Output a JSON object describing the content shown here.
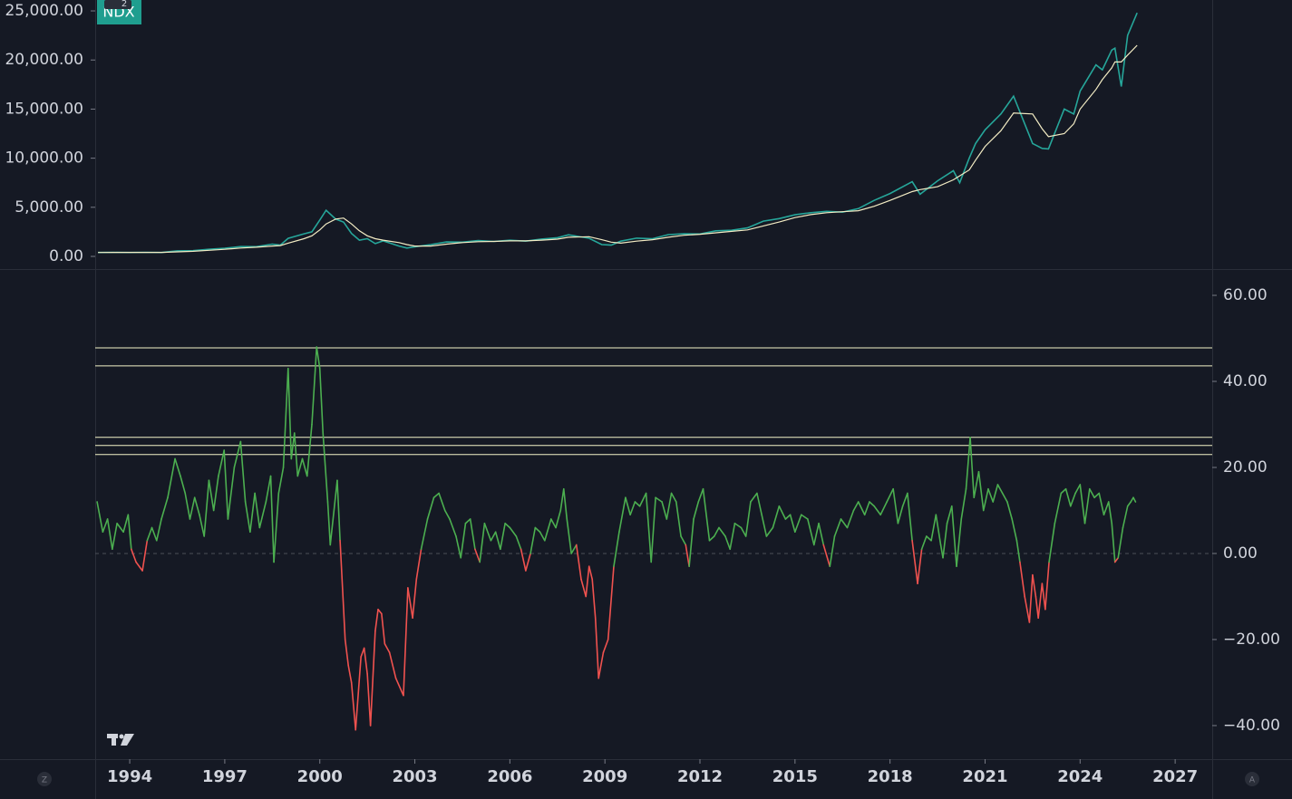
{
  "chart_data": [
    {
      "type": "line",
      "badge": "2",
      "xlim": [
        1992.91,
        2028.17
      ],
      "ylim": [
        -1290,
        26110
      ],
      "yticks": [
        {
          "value": 0,
          "label": "0.00"
        },
        {
          "value": 5000,
          "label": "5,000.00"
        },
        {
          "value": 10000,
          "label": "10,000.00"
        },
        {
          "value": 15000,
          "label": "15,000.00"
        },
        {
          "value": 20000,
          "label": "20,000.00"
        },
        {
          "value": 25000,
          "label": "25,000.00"
        }
      ],
      "x": [
        1993.0,
        1993.5,
        1994.0,
        1994.5,
        1995.0,
        1995.5,
        1996.0,
        1996.5,
        1997.0,
        1997.5,
        1998.0,
        1998.5,
        1998.75,
        1999.0,
        1999.5,
        1999.75,
        2000.0,
        2000.2,
        2000.5,
        2000.75,
        2001.0,
        2001.25,
        2001.5,
        2001.75,
        2002.0,
        2002.5,
        2002.75,
        2003.0,
        2003.5,
        2004.0,
        2004.5,
        2005.0,
        2005.5,
        2006.0,
        2006.5,
        2007.0,
        2007.5,
        2007.85,
        2008.5,
        2008.9,
        2009.2,
        2009.5,
        2010.0,
        2010.5,
        2011.0,
        2011.5,
        2012.0,
        2012.5,
        2013.0,
        2013.5,
        2014.0,
        2014.5,
        2015.0,
        2015.5,
        2016.0,
        2016.5,
        2017.0,
        2017.5,
        2018.0,
        2018.7,
        2018.95,
        2019.5,
        2020.0,
        2020.2,
        2020.5,
        2020.7,
        2021.0,
        2021.5,
        2021.9,
        2022.5,
        2022.8,
        2023.0,
        2023.5,
        2023.8,
        2024.0,
        2024.5,
        2024.7,
        2025.0,
        2025.1,
        2025.3,
        2025.5,
        2025.8
      ],
      "series": [
        {
          "name": "NDX",
          "color": "#26a69a",
          "values": [
            400,
            410,
            400,
            420,
            400,
            560,
            580,
            720,
            830,
            1000,
            990,
            1250,
            1150,
            1840,
            2300,
            2500,
            3700,
            4700,
            3800,
            3500,
            2340,
            1650,
            1800,
            1300,
            1580,
            1050,
            850,
            980,
            1200,
            1470,
            1450,
            1620,
            1520,
            1645,
            1550,
            1760,
            1900,
            2200,
            1850,
            1200,
            1150,
            1550,
            1860,
            1800,
            2220,
            2300,
            2280,
            2600,
            2660,
            2900,
            3590,
            3850,
            4240,
            4450,
            4590,
            4500,
            4860,
            5700,
            6400,
            7600,
            6330,
            7700,
            8730,
            7500,
            10000,
            11500,
            12890,
            14500,
            16320,
            11500,
            11000,
            10940,
            15000,
            14500,
            16830,
            19500,
            19000,
            21010,
            21200,
            17300,
            22500,
            24800
          ]
        },
        {
          "color": "#f3ecc4",
          "values": [
            400,
            405,
            405,
            410,
            410,
            460,
            520,
            620,
            720,
            850,
            930,
            1050,
            1100,
            1350,
            1800,
            2100,
            2700,
            3300,
            3800,
            3900,
            3300,
            2600,
            2100,
            1800,
            1650,
            1400,
            1200,
            1050,
            1050,
            1250,
            1400,
            1500,
            1520,
            1580,
            1580,
            1650,
            1750,
            1950,
            2000,
            1700,
            1450,
            1350,
            1550,
            1700,
            1950,
            2150,
            2250,
            2400,
            2550,
            2700,
            3100,
            3500,
            3950,
            4250,
            4450,
            4550,
            4650,
            5100,
            5700,
            6600,
            6800,
            7100,
            7800,
            8200,
            8800,
            9800,
            11200,
            12800,
            14600,
            14500,
            13000,
            12200,
            12500,
            13500,
            15000,
            17000,
            18000,
            19200,
            19800,
            19800,
            20500,
            21500
          ]
        }
      ]
    },
    {
      "type": "oscillator",
      "xlim": [
        1992.91,
        2028.17
      ],
      "ylim": [
        -47.8,
        65.9
      ],
      "yticks": [
        {
          "value": -40,
          "label": "−40.00"
        },
        {
          "value": -20,
          "label": "−20.00"
        },
        {
          "value": 0,
          "label": "0.00"
        },
        {
          "value": 20,
          "label": "20.00"
        },
        {
          "value": 40,
          "label": "40.00"
        },
        {
          "value": 60,
          "label": "60.00"
        }
      ],
      "xticks": [
        1994,
        1997,
        2000,
        2003,
        2006,
        2009,
        2012,
        2015,
        2018,
        2021,
        2024,
        2027
      ],
      "baseline": 0,
      "levels": [
        47.8,
        43.6,
        27,
        25.1,
        23
      ],
      "level_color": "#f3f3c8",
      "positive_color": "#4caf50",
      "negative_color": "#f0524f",
      "x": [
        1992.97,
        1993.15,
        1993.3,
        1993.45,
        1993.6,
        1993.8,
        1993.95,
        1994.05,
        1994.2,
        1994.4,
        1994.55,
        1994.7,
        1994.85,
        1995.0,
        1995.2,
        1995.43,
        1995.6,
        1995.75,
        1995.9,
        1996.05,
        1996.2,
        1996.35,
        1996.5,
        1996.65,
        1996.8,
        1996.98,
        1997.1,
        1997.3,
        1997.5,
        1997.65,
        1997.8,
        1997.95,
        1998.1,
        1998.3,
        1998.45,
        1998.55,
        1998.7,
        1998.85,
        1999.0,
        1999.1,
        1999.2,
        1999.3,
        1999.45,
        1999.6,
        1999.75,
        1999.9,
        2000.0,
        2000.1,
        2000.25,
        2000.33,
        2000.55,
        2000.64,
        2000.8,
        2000.9,
        2001.0,
        2001.13,
        2001.3,
        2001.4,
        2001.5,
        2001.6,
        2001.75,
        2001.84,
        2001.95,
        2002.05,
        2002.2,
        2002.4,
        2002.64,
        2002.78,
        2002.93,
        2003.05,
        2003.2,
        2003.4,
        2003.6,
        2003.76,
        2003.95,
        2004.1,
        2004.3,
        2004.45,
        2004.6,
        2004.75,
        2004.9,
        2005.05,
        2005.2,
        2005.4,
        2005.55,
        2005.7,
        2005.85,
        2006.0,
        2006.2,
        2006.35,
        2006.5,
        2006.65,
        2006.8,
        2006.95,
        2007.1,
        2007.3,
        2007.45,
        2007.6,
        2007.7,
        2007.8,
        2007.94,
        2008.1,
        2008.25,
        2008.4,
        2008.5,
        2008.6,
        2008.7,
        2008.8,
        2008.95,
        2009.1,
        2009.28,
        2009.45,
        2009.65,
        2009.8,
        2009.95,
        2010.1,
        2010.3,
        2010.46,
        2010.6,
        2010.8,
        2010.95,
        2011.1,
        2011.25,
        2011.4,
        2011.55,
        2011.66,
        2011.8,
        2011.95,
        2012.1,
        2012.3,
        2012.45,
        2012.6,
        2012.8,
        2012.95,
        2013.1,
        2013.3,
        2013.45,
        2013.6,
        2013.8,
        2013.95,
        2014.1,
        2014.3,
        2014.5,
        2014.7,
        2014.85,
        2015.0,
        2015.2,
        2015.4,
        2015.6,
        2015.75,
        2015.9,
        2016.1,
        2016.25,
        2016.45,
        2016.65,
        2016.85,
        2017.0,
        2017.2,
        2017.35,
        2017.5,
        2017.7,
        2017.9,
        2018.1,
        2018.25,
        2018.4,
        2018.55,
        2018.7,
        2018.87,
        2019.0,
        2019.15,
        2019.3,
        2019.45,
        2019.6,
        2019.67,
        2019.8,
        2019.95,
        2020.1,
        2020.25,
        2020.4,
        2020.53,
        2020.65,
        2020.8,
        2020.95,
        2021.1,
        2021.25,
        2021.4,
        2021.55,
        2021.7,
        2021.85,
        2022.0,
        2022.1,
        2022.25,
        2022.4,
        2022.5,
        2022.6,
        2022.68,
        2022.8,
        2022.9,
        2023.02,
        2023.2,
        2023.4,
        2023.55,
        2023.7,
        2023.85,
        2024.0,
        2024.15,
        2024.3,
        2024.45,
        2024.6,
        2024.75,
        2024.9,
        2025.0,
        2025.1,
        2025.2,
        2025.35,
        2025.5,
        2025.6,
        2025.68,
        2025.75
      ],
      "values": [
        12,
        5,
        8,
        1,
        7,
        5,
        9,
        1,
        -2,
        -4,
        3,
        6,
        3,
        8,
        13,
        22,
        18,
        14,
        8,
        13,
        9,
        4,
        17,
        10,
        18,
        24,
        8,
        20,
        26,
        12,
        5,
        14,
        6,
        12,
        18,
        -2,
        14,
        20,
        43,
        22,
        28,
        18,
        22,
        18,
        30,
        48,
        43,
        28,
        12,
        2,
        17,
        3,
        -20,
        -26,
        -30,
        -41,
        -24,
        -22,
        -28,
        -40,
        -18,
        -13,
        -14,
        -21,
        -23,
        -29,
        -33,
        -8,
        -15,
        -6,
        1,
        8,
        13,
        14,
        10,
        8,
        4,
        -1,
        7,
        8,
        1,
        -2,
        7,
        3,
        5,
        1,
        7,
        6,
        4,
        1,
        -4,
        0,
        6,
        5,
        3,
        8,
        6,
        10,
        15,
        8,
        0,
        2,
        -6,
        -10,
        -3,
        -6,
        -15,
        -29,
        -23,
        -20,
        -3,
        5,
        13,
        9,
        12,
        11,
        14,
        -2,
        13,
        12,
        8,
        14,
        12,
        4,
        2,
        -3,
        8,
        12,
        15,
        3,
        4,
        6,
        4,
        1,
        7,
        6,
        4,
        12,
        14,
        9,
        4,
        6,
        11,
        8,
        9,
        5,
        9,
        8,
        2,
        7,
        2,
        -3,
        4,
        8,
        6,
        10,
        12,
        9,
        12,
        11,
        9,
        12,
        15,
        7,
        11,
        14,
        3,
        -7,
        1,
        4,
        3,
        9,
        2,
        -1,
        7,
        11,
        -3,
        8,
        15,
        27,
        13,
        19,
        10,
        15,
        12,
        16,
        14,
        12,
        8,
        3,
        -2,
        -10,
        -16,
        -5,
        -10,
        -15,
        -7,
        -13,
        -2,
        7,
        14,
        15,
        11,
        14,
        16,
        7,
        15,
        13,
        14,
        9,
        12,
        7,
        -2,
        -1,
        6,
        11,
        12,
        13,
        12
      ]
    }
  ],
  "corner_icons": {
    "left": "Z",
    "right": "A"
  }
}
